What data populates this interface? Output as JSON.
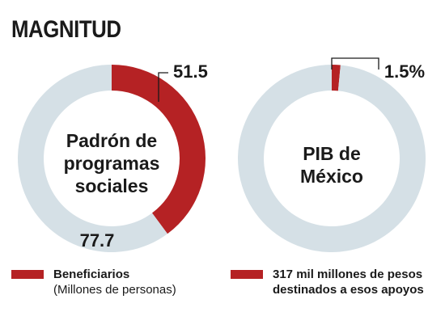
{
  "title": "MAGNITUD",
  "colors": {
    "primary": "#B52224",
    "secondary": "#D5E0E6",
    "text": "#1A1A1A"
  },
  "chart_data": [
    {
      "type": "pie",
      "variant": "donut",
      "center_label": [
        "Padrón de",
        "programas",
        "sociales"
      ],
      "slices": [
        {
          "label": "51.5",
          "value": 51.5,
          "color": "#B52224"
        },
        {
          "label": "77.7",
          "value": 77.7,
          "color": "#D5E0E6"
        }
      ],
      "legend": {
        "label": "Beneficiarios",
        "sublabel": "(Millones de personas)",
        "color": "#B52224"
      }
    },
    {
      "type": "pie",
      "variant": "donut",
      "center_label": [
        "PIB de",
        "México"
      ],
      "slices": [
        {
          "label": "1.5%",
          "value": 1.5,
          "color": "#B52224"
        },
        {
          "label": "",
          "value": 98.5,
          "color": "#D5E0E6"
        }
      ],
      "legend": {
        "label": "317 mil millones de pesos",
        "sublabel": "destinados a esos apoyos",
        "color": "#B52224"
      }
    }
  ]
}
